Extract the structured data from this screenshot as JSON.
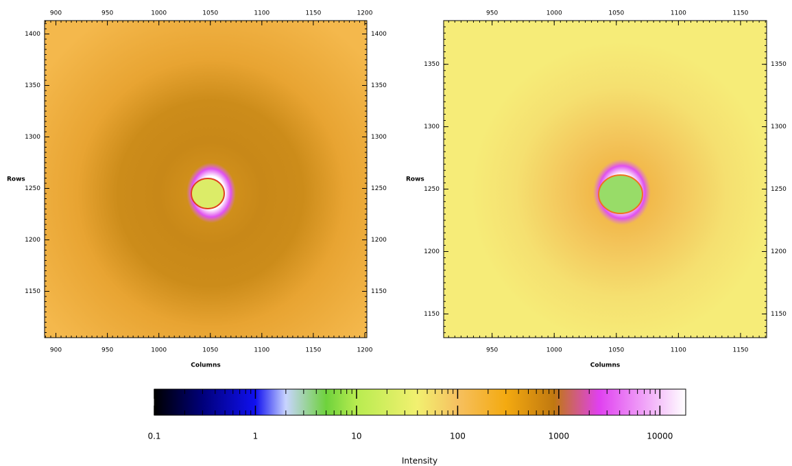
{
  "chart_data": [
    {
      "type": "image",
      "xlabel": "Columns",
      "ylabel": "Rows",
      "xlim": [
        889,
        1202
      ],
      "ylim": [
        1105,
        1413
      ],
      "xticks": [
        900,
        950,
        1000,
        1050,
        1100,
        1150,
        1200
      ],
      "yticks": [
        1150,
        1200,
        1250,
        1300,
        1350,
        1400
      ]
    },
    {
      "type": "image",
      "xlabel": "Columns",
      "ylabel": "Rows",
      "xlim": [
        911,
        1171
      ],
      "ylim": [
        1131,
        1385
      ],
      "xticks": [
        950,
        1000,
        1050,
        1100,
        1150
      ],
      "yticks": [
        1150,
        1200,
        1250,
        1300,
        1350
      ]
    },
    {
      "type": "colorbar",
      "label": "Intensity",
      "log": true,
      "xlim": [
        0.1,
        18000
      ],
      "xticks": [
        0.1,
        1,
        10,
        100,
        1000,
        10000
      ],
      "colormap": [
        {
          "value": 0.1,
          "color": "#000000"
        },
        {
          "value": 0.3,
          "color": "#00007a"
        },
        {
          "value": 1,
          "color": "#1010f0"
        },
        {
          "value": 2,
          "color": "#c8d4ff"
        },
        {
          "value": 5,
          "color": "#6ed23c"
        },
        {
          "value": 10,
          "color": "#b8ec50"
        },
        {
          "value": 40,
          "color": "#f2f070"
        },
        {
          "value": 100,
          "color": "#f6c060"
        },
        {
          "value": 300,
          "color": "#f4aa10"
        },
        {
          "value": 900,
          "color": "#c07810"
        },
        {
          "value": 2500,
          "color": "#e040f0"
        },
        {
          "value": 18000,
          "color": "#ffffff"
        }
      ]
    }
  ]
}
